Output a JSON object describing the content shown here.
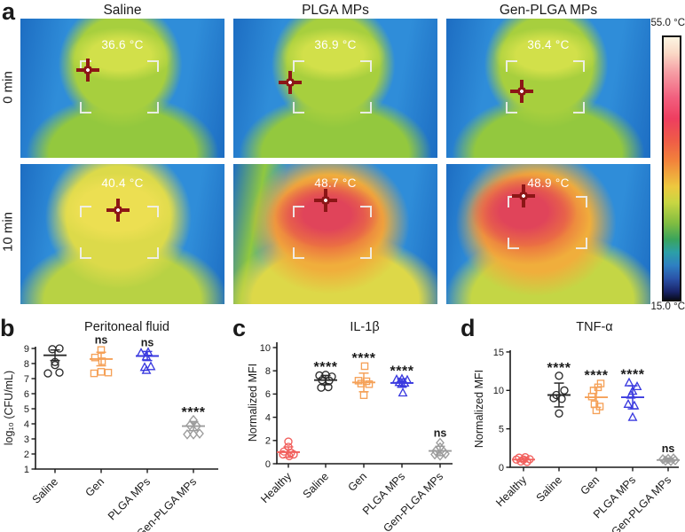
{
  "figure_labels": {
    "a": "a",
    "b": "b",
    "c": "c",
    "d": "d"
  },
  "panel_a": {
    "columns": [
      "Saline",
      "PLGA MPs",
      "Gen-PLGA MPs"
    ],
    "rows": [
      "0 min",
      "10 min"
    ],
    "tiles": [
      {
        "group": "Saline",
        "time": "0 min",
        "temp": "36.6 °C"
      },
      {
        "group": "PLGA MPs",
        "time": "0 min",
        "temp": "36.9 °C"
      },
      {
        "group": "Gen-PLGA MPs",
        "time": "0 min",
        "temp": "36.4 °C"
      },
      {
        "group": "Saline",
        "time": "10 min",
        "temp": "40.4 °C"
      },
      {
        "group": "PLGA MPs",
        "time": "10 min",
        "temp": "48.7 °C"
      },
      {
        "group": "Gen-PLGA MPs",
        "time": "10 min",
        "temp": "48.9 °C"
      }
    ],
    "colorbar": {
      "max_label": "55.0 °C",
      "min_label": "15.0 °C"
    }
  },
  "chart_data": [
    {
      "type": "scatter",
      "panel": "b",
      "title": "Peritoneal fluid",
      "ylabel": "log₁₀ (CFU/mL)",
      "ylim": [
        1,
        9.4
      ],
      "yticks": [
        1,
        2,
        3,
        4,
        5,
        6,
        7,
        8,
        9
      ],
      "groups": [
        {
          "label": "Saline",
          "color": "#2b2b2b",
          "marker": "circle",
          "mean": 8.55,
          "sd": 0.35,
          "sig": null,
          "points": [
            [
              -3,
              8.95
            ],
            [
              5,
              9.0
            ],
            [
              0,
              8.1
            ],
            [
              0,
              7.9
            ],
            [
              -8,
              7.35
            ],
            [
              5,
              7.4
            ]
          ]
        },
        {
          "label": "Gen",
          "color": "#f5a158",
          "marker": "square",
          "mean": 8.3,
          "sd": 0.45,
          "sig": "ns",
          "points": [
            [
              0,
              8.9
            ],
            [
              -7,
              8.4
            ],
            [
              1,
              8.15
            ],
            [
              -8,
              7.35
            ],
            [
              0,
              7.45
            ],
            [
              8,
              7.4
            ]
          ]
        },
        {
          "label": "PLGA MPs",
          "color": "#3a3adf",
          "marker": "triangle",
          "mean": 8.5,
          "sd": 0.3,
          "sig": "ns",
          "points": [
            [
              -7,
              8.7
            ],
            [
              1,
              8.75
            ],
            [
              -1,
              8.45
            ],
            [
              -3,
              7.75
            ],
            [
              4,
              7.8
            ],
            [
              -1,
              7.55
            ]
          ]
        },
        {
          "label": "Gen-PLGA MPs",
          "color": "#9c9c9c",
          "marker": "diamond",
          "mean": 3.85,
          "sd": 0.3,
          "sig": "****",
          "points": [
            [
              0,
              4.25
            ],
            [
              -4,
              3.9
            ],
            [
              4,
              3.85
            ],
            [
              -7,
              3.3
            ],
            [
              0,
              3.3
            ],
            [
              7,
              3.35
            ]
          ]
        }
      ]
    },
    {
      "type": "scatter",
      "panel": "c",
      "title": "IL-1β",
      "ylabel": "Normalized MFI",
      "ylim": [
        0,
        10.4
      ],
      "yticks": [
        0,
        2,
        4,
        6,
        8,
        10
      ],
      "groups": [
        {
          "label": "Healthy",
          "color": "#f15f5c",
          "marker": "circle",
          "mean": 1.0,
          "sd": 0.45,
          "sig": null,
          "points": [
            [
              0,
              1.9
            ],
            [
              0,
              1.45
            ],
            [
              -5,
              1.05
            ],
            [
              3,
              0.95
            ],
            [
              -6,
              0.8
            ],
            [
              1,
              0.65
            ],
            [
              6,
              0.8
            ]
          ]
        },
        {
          "label": "Saline",
          "color": "#2b2b2b",
          "marker": "circle",
          "mean": 7.2,
          "sd": 0.4,
          "sig": "****",
          "points": [
            [
              -7,
              7.6
            ],
            [
              0,
              7.65
            ],
            [
              7,
              7.5
            ],
            [
              -4,
              7.2
            ],
            [
              4,
              7.15
            ],
            [
              -5,
              6.55
            ],
            [
              3,
              6.6
            ]
          ]
        },
        {
          "label": "Gen",
          "color": "#f5a158",
          "marker": "square",
          "mean": 7.0,
          "sd": 0.8,
          "sig": "****",
          "points": [
            [
              1,
              8.4
            ],
            [
              -6,
              7.15
            ],
            [
              3,
              7.1
            ],
            [
              -3,
              6.9
            ],
            [
              6,
              6.85
            ],
            [
              0,
              5.9
            ]
          ]
        },
        {
          "label": "PLGA MPs",
          "color": "#3a3adf",
          "marker": "triangle",
          "mean": 6.95,
          "sd": 0.35,
          "sig": "****",
          "points": [
            [
              -6,
              7.25
            ],
            [
              0,
              7.3
            ],
            [
              6,
              7.2
            ],
            [
              -3,
              7.0
            ],
            [
              3,
              6.95
            ],
            [
              0,
              6.85
            ],
            [
              1,
              6.1
            ]
          ]
        },
        {
          "label": "Gen-PLGA MPs",
          "color": "#9c9c9c",
          "marker": "diamond",
          "mean": 1.1,
          "sd": 0.4,
          "sig": "ns",
          "points": [
            [
              0,
              1.8
            ],
            [
              0,
              1.4
            ],
            [
              -5,
              1.1
            ],
            [
              4,
              1.05
            ],
            [
              -6,
              0.8
            ],
            [
              0,
              0.7
            ],
            [
              6,
              0.85
            ]
          ]
        }
      ]
    },
    {
      "type": "scatter",
      "panel": "d",
      "title": "TNF-α",
      "ylabel": "Normalized MFI",
      "ylim": [
        0,
        15.6
      ],
      "yticks": [
        0,
        5,
        10,
        15
      ],
      "groups": [
        {
          "label": "Healthy",
          "color": "#f15f5c",
          "marker": "circle",
          "mean": 1.0,
          "sd": 0.25,
          "sig": null,
          "points": [
            [
              -5,
              1.25
            ],
            [
              2,
              1.3
            ],
            [
              -8,
              1.0
            ],
            [
              0,
              1.0
            ],
            [
              7,
              1.05
            ],
            [
              -3,
              0.75
            ],
            [
              4,
              0.7
            ]
          ]
        },
        {
          "label": "Saline",
          "color": "#2b2b2b",
          "marker": "circle",
          "mean": 9.4,
          "sd": 1.55,
          "sig": "****",
          "points": [
            [
              0,
              11.9
            ],
            [
              6,
              10.0
            ],
            [
              -3,
              9.4
            ],
            [
              -6,
              9.0
            ],
            [
              3,
              8.9
            ],
            [
              0,
              7.0
            ]
          ]
        },
        {
          "label": "Gen",
          "color": "#f5a158",
          "marker": "square",
          "mean": 9.1,
          "sd": 1.3,
          "sig": "****",
          "points": [
            [
              5,
              10.9
            ],
            [
              2,
              10.4
            ],
            [
              -3,
              10.0
            ],
            [
              -5,
              9.2
            ],
            [
              -2,
              8.2
            ],
            [
              4,
              7.9
            ],
            [
              0,
              7.4
            ]
          ]
        },
        {
          "label": "PLGA MPs",
          "color": "#3a3adf",
          "marker": "triangle",
          "mean": 9.1,
          "sd": 1.5,
          "sig": "****",
          "points": [
            [
              -4,
              11.0
            ],
            [
              5,
              10.5
            ],
            [
              0,
              9.9
            ],
            [
              -2,
              9.4
            ],
            [
              -5,
              8.2
            ],
            [
              2,
              8.0
            ],
            [
              0,
              6.5
            ]
          ]
        },
        {
          "label": "Gen-PLGA MPs",
          "color": "#9c9c9c",
          "marker": "diamond",
          "mean": 0.95,
          "sd": 0.25,
          "sig": "ns",
          "points": [
            [
              -6,
              1.05
            ],
            [
              0,
              1.1
            ],
            [
              6,
              1.15
            ],
            [
              -3,
              0.85
            ],
            [
              3,
              0.8
            ],
            [
              8,
              0.9
            ]
          ]
        }
      ]
    }
  ]
}
